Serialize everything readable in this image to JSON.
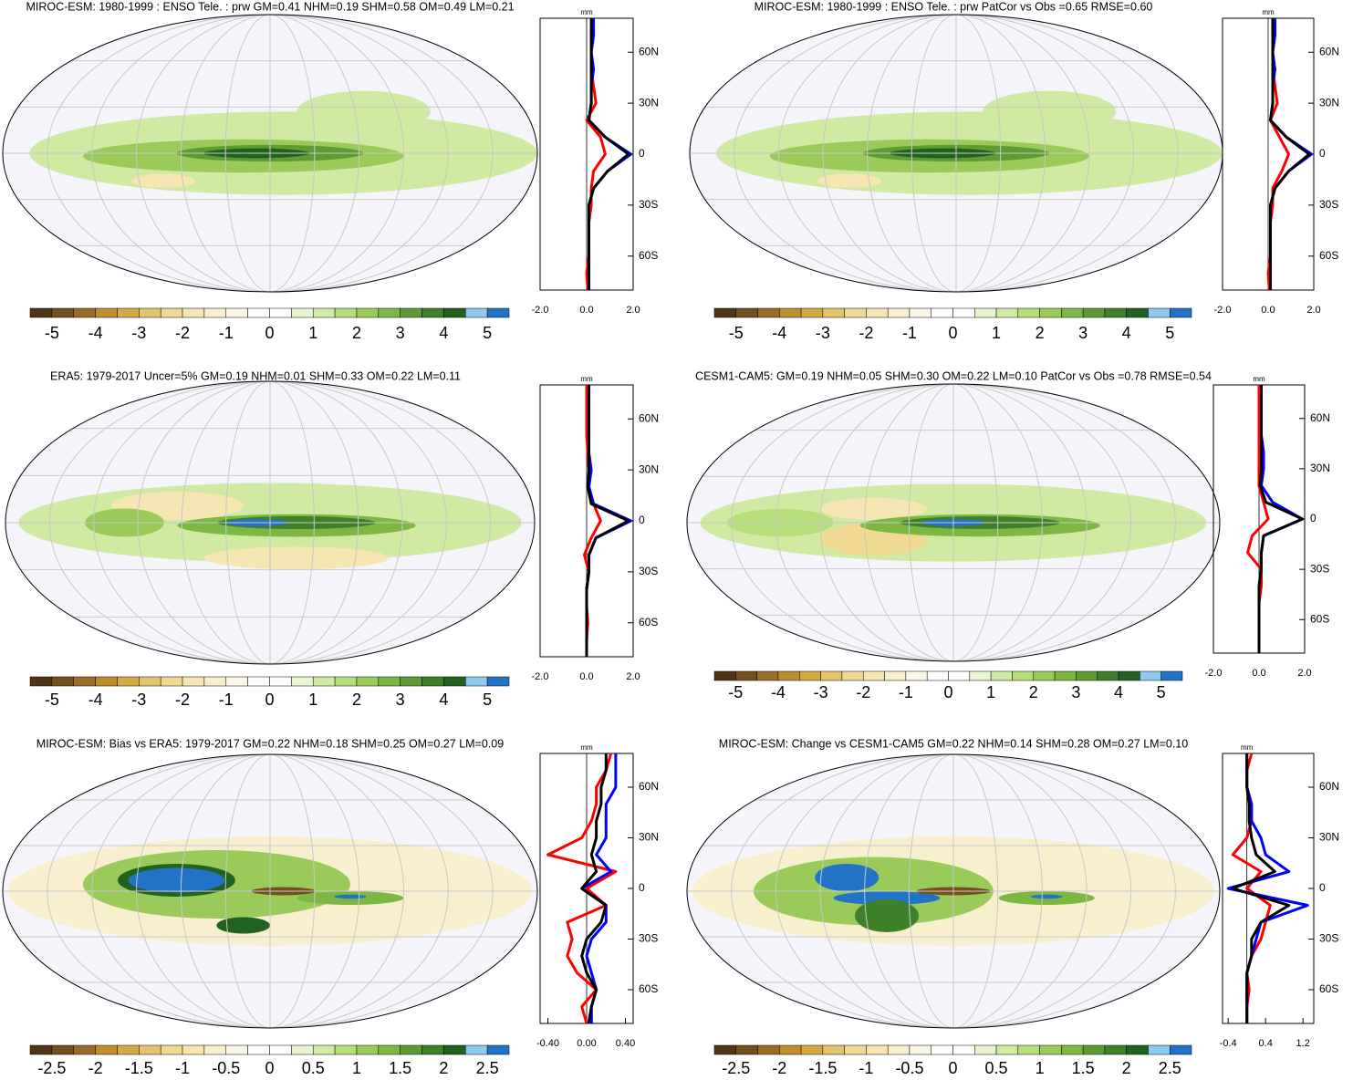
{
  "colorbar_colors": [
    "#4f3416",
    "#74501f",
    "#9a6c27",
    "#bd8d2e",
    "#d5aa42",
    "#e4c46e",
    "#efd993",
    "#f5e6b4",
    "#f8efcf",
    "#fbf8ea",
    "#ffffff",
    "#ffffff",
    "#e9f5d2",
    "#d0eaa3",
    "#b7de7c",
    "#9acb5a",
    "#7db743",
    "#5d9c34",
    "#3e8029",
    "#226221",
    "#8fc9ef",
    "#2273c8"
  ],
  "chart_data": [
    {
      "type": "map",
      "title": "MIROC-ESM: 1980-1999 : ENSO Tele. : prw GM=0.41 NHM=0.19 SHM=0.58 OM=0.49 LM=0.21",
      "colorbar": {
        "lim": [
          -5.5,
          5.5
        ],
        "ticks": [
          -5,
          -4,
          -3,
          -2,
          -1,
          0,
          1,
          2,
          3,
          4,
          5
        ]
      },
      "profile": {
        "type": "line",
        "unit": "mm",
        "xlim": [
          -2,
          2
        ],
        "xticks": [
          {
            "value": -2,
            "label": "-2.0"
          },
          {
            "value": 0,
            "label": "0.0"
          },
          {
            "value": 2,
            "label": "2.0"
          }
        ],
        "ylim": [
          -80,
          80
        ],
        "yticks": [
          {
            "value": -60,
            "label": "60S"
          },
          {
            "value": -30,
            "label": "30S"
          },
          0,
          {
            "value": 30,
            "label": "30N"
          },
          {
            "value": 60,
            "label": "60N"
          }
        ],
        "lat": [
          -80,
          -70,
          -60,
          -50,
          -40,
          -30,
          -20,
          -10,
          0,
          10,
          20,
          30,
          40,
          50,
          60,
          70,
          80
        ],
        "series": [
          {
            "color": "#ff0000",
            "values": [
              0.05,
              0.0,
              0.1,
              0.1,
              0.1,
              0.2,
              0.2,
              0.3,
              0.8,
              0.6,
              0.0,
              0.4,
              0.3,
              0.2,
              0.2,
              0.2,
              0.3
            ]
          },
          {
            "color": "#0000ff",
            "values": [
              0.1,
              0.1,
              0.1,
              0.1,
              0.1,
              0.1,
              0.3,
              0.9,
              1.9,
              0.8,
              0.1,
              0.2,
              0.2,
              0.3,
              0.2,
              0.3,
              0.3
            ]
          },
          {
            "color": "#000000",
            "values": [
              0.1,
              0.1,
              0.1,
              0.1,
              0.1,
              0.1,
              0.3,
              0.9,
              1.8,
              0.8,
              0.1,
              0.2,
              0.2,
              0.2,
              0.2,
              0.2,
              0.2
            ]
          }
        ]
      }
    },
    {
      "type": "map",
      "title": "MIROC-ESM: 1980-1999 : ENSO Tele. : prw PatCor vs Obs =0.65 RMSE=0.60",
      "colorbar": {
        "lim": [
          -5.5,
          5.5
        ],
        "ticks": [
          -5,
          -4,
          -3,
          -2,
          -1,
          0,
          1,
          2,
          3,
          4,
          5
        ]
      },
      "profile": {
        "type": "line",
        "unit": "mm",
        "xlim": [
          -2,
          2
        ],
        "xticks": [
          {
            "value": -2,
            "label": "-2.0"
          },
          {
            "value": 0,
            "label": "0.0"
          },
          {
            "value": 2,
            "label": "2.0"
          }
        ],
        "ylim": [
          -80,
          80
        ],
        "yticks": [
          {
            "value": -60,
            "label": "60S"
          },
          {
            "value": -30,
            "label": "30S"
          },
          0,
          {
            "value": 30,
            "label": "30N"
          },
          {
            "value": 60,
            "label": "60N"
          }
        ],
        "lat": [
          -80,
          -70,
          -60,
          -50,
          -40,
          -30,
          -20,
          -10,
          0,
          10,
          20,
          30,
          40,
          50,
          60,
          70,
          80
        ],
        "series": [
          {
            "color": "#ff0000",
            "values": [
              0.05,
              0.0,
              0.1,
              0.1,
              0.1,
              0.2,
              0.2,
              0.6,
              0.9,
              0.5,
              0.1,
              0.4,
              0.3,
              0.2,
              0.2,
              0.2,
              0.3
            ]
          },
          {
            "color": "#0000ff",
            "values": [
              0.1,
              0.1,
              0.1,
              0.1,
              0.1,
              0.1,
              0.3,
              0.9,
              1.9,
              0.8,
              0.1,
              0.2,
              0.2,
              0.3,
              0.2,
              0.3,
              0.3
            ]
          },
          {
            "color": "#000000",
            "values": [
              0.1,
              0.1,
              0.1,
              0.1,
              0.1,
              0.1,
              0.3,
              0.9,
              1.8,
              0.8,
              0.1,
              0.2,
              0.2,
              0.2,
              0.2,
              0.2,
              0.2
            ]
          }
        ]
      }
    },
    {
      "type": "map",
      "title": "ERA5: 1979-2017 Uncer=5% GM=0.19 NHM=0.01 SHM=0.33 OM=0.22 LM=0.11",
      "colorbar": {
        "lim": [
          -5.5,
          5.5
        ],
        "ticks": [
          -5,
          -4,
          -3,
          -2,
          -1,
          0,
          1,
          2,
          3,
          4,
          5
        ]
      },
      "profile": {
        "type": "line",
        "unit": "mm",
        "xlim": [
          -2,
          2
        ],
        "xticks": [
          {
            "value": -2,
            "label": "-2.0"
          },
          {
            "value": 0,
            "label": "0.0"
          },
          {
            "value": 2,
            "label": "2.0"
          }
        ],
        "ylim": [
          -80,
          80
        ],
        "yticks": [
          {
            "value": -60,
            "label": "60S"
          },
          {
            "value": -30,
            "label": "30S"
          },
          0,
          {
            "value": 30,
            "label": "30N"
          },
          {
            "value": 60,
            "label": "60N"
          }
        ],
        "lat": [
          -80,
          -70,
          -60,
          -50,
          -40,
          -30,
          -20,
          -10,
          0,
          10,
          20,
          30,
          40,
          50,
          60,
          70,
          80
        ],
        "series": [
          {
            "color": "#ff0000",
            "values": [
              0.0,
              0.0,
              0.05,
              0.0,
              0.0,
              0.1,
              -0.1,
              0.2,
              0.6,
              0.3,
              0.1,
              0.1,
              0.05,
              0.0,
              0.0,
              0.0,
              0.0
            ]
          },
          {
            "color": "#0000ff",
            "values": [
              0.0,
              0.0,
              0.0,
              0.0,
              0.0,
              0.1,
              0.1,
              0.4,
              1.9,
              0.3,
              0.1,
              0.2,
              0.1,
              0.1,
              0.1,
              0.1,
              0.1
            ]
          },
          {
            "color": "#000000",
            "values": [
              0.0,
              0.0,
              0.0,
              0.0,
              0.0,
              0.1,
              0.1,
              0.4,
              1.8,
              0.2,
              0.05,
              0.1,
              0.1,
              0.1,
              0.1,
              0.1,
              0.1
            ]
          }
        ]
      }
    },
    {
      "type": "map",
      "title": "CESM1-CAM5: GM=0.19 NHM=0.05 SHM=0.30 OM=0.22 LM=0.10 PatCor vs Obs =0.78 RMSE=0.54",
      "colorbar": {
        "lim": [
          -5.5,
          5.5
        ],
        "ticks": [
          -5,
          -4,
          -3,
          -2,
          -1,
          0,
          1,
          2,
          3,
          4,
          5
        ]
      },
      "profile": {
        "type": "line",
        "unit": "mm",
        "xlim": [
          -2,
          2
        ],
        "xticks": [
          {
            "value": -2,
            "label": "-2.0"
          },
          {
            "value": 0,
            "label": "0.0"
          },
          {
            "value": 2,
            "label": "2.0"
          }
        ],
        "ylim": [
          -80,
          80
        ],
        "yticks": [
          {
            "value": -60,
            "label": "60S"
          },
          {
            "value": -30,
            "label": "30S"
          },
          0,
          {
            "value": 30,
            "label": "30N"
          },
          {
            "value": 60,
            "label": "60N"
          }
        ],
        "lat": [
          -80,
          -70,
          -60,
          -50,
          -40,
          -30,
          -20,
          -10,
          0,
          10,
          20,
          30,
          40,
          50,
          60,
          70,
          80
        ],
        "series": [
          {
            "color": "#ff0000",
            "values": [
              0.0,
              0.0,
              0.0,
              0.0,
              0.1,
              0.1,
              -0.5,
              -0.3,
              0.4,
              0.2,
              0.0,
              0.0,
              0.0,
              0.0,
              0.0,
              0.0,
              0.0
            ]
          },
          {
            "color": "#0000ff",
            "values": [
              0.0,
              0.0,
              0.0,
              0.0,
              0.0,
              0.1,
              0.1,
              0.2,
              1.9,
              0.6,
              0.1,
              0.2,
              0.2,
              0.1,
              0.1,
              0.1,
              0.1
            ]
          },
          {
            "color": "#000000",
            "values": [
              0.0,
              0.0,
              0.0,
              0.0,
              0.0,
              0.1,
              0.1,
              0.2,
              1.9,
              0.3,
              0.05,
              0.1,
              0.1,
              0.1,
              0.1,
              0.1,
              0.1
            ]
          }
        ]
      }
    },
    {
      "type": "map",
      "title": "MIROC-ESM: Bias vs ERA5: 1979-2017 GM=0.22 NHM=0.18 SHM=0.25 OM=0.27 LM=0.09",
      "colorbar": {
        "lim": [
          -2.75,
          2.75
        ],
        "ticks": [
          -2.5,
          -2,
          -1.5,
          -1,
          -0.5,
          0,
          0.5,
          1,
          1.5,
          2,
          2.5
        ]
      },
      "profile": {
        "type": "line",
        "unit": "mm",
        "xlim": [
          -0.48,
          0.48
        ],
        "xticks": [
          {
            "value": -0.4,
            "label": "-0.40"
          },
          {
            "value": 0,
            "label": "0.00"
          },
          {
            "value": 0.4,
            "label": "0.40"
          }
        ],
        "ylim": [
          -80,
          80
        ],
        "yticks": [
          {
            "value": -60,
            "label": "60S"
          },
          {
            "value": -30,
            "label": "30S"
          },
          0,
          {
            "value": 30,
            "label": "30N"
          },
          {
            "value": 60,
            "label": "60N"
          }
        ],
        "lat": [
          -80,
          -70,
          -60,
          -50,
          -40,
          -30,
          -20,
          -10,
          0,
          10,
          20,
          30,
          40,
          50,
          60,
          70,
          80
        ],
        "series": [
          {
            "color": "#ff0000",
            "values": [
              0.0,
              -0.05,
              0.1,
              -0.1,
              -0.2,
              -0.15,
              -0.2,
              0.2,
              0.0,
              0.3,
              -0.4,
              -0.05,
              0.05,
              0.1,
              0.1,
              0.2,
              0.25
            ]
          },
          {
            "color": "#0000ff",
            "values": [
              0.05,
              0.05,
              0.1,
              0.05,
              0.0,
              0.05,
              0.2,
              0.2,
              -0.05,
              0.25,
              0.1,
              0.2,
              0.2,
              0.2,
              0.3,
              0.3,
              0.3
            ]
          },
          {
            "color": "#000000",
            "values": [
              0.02,
              0.05,
              0.1,
              0.0,
              -0.05,
              0.0,
              0.15,
              0.2,
              -0.05,
              0.1,
              0.05,
              0.1,
              0.1,
              0.15,
              0.15,
              0.2,
              0.2
            ]
          }
        ]
      }
    },
    {
      "type": "map",
      "title": "MIROC-ESM: Change vs CESM1-CAM5 GM=0.22 NHM=0.14 SHM=0.28 OM=0.27 LM=0.10",
      "colorbar": {
        "lim": [
          -2.75,
          2.75
        ],
        "ticks": [
          -2.5,
          -2,
          -1.5,
          -1,
          -0.5,
          0,
          0.5,
          1,
          1.5,
          2,
          2.5
        ]
      },
      "profile": {
        "type": "line",
        "unit": "mm",
        "xlim": [
          -0.52,
          1.43
        ],
        "xticks": [
          {
            "value": -0.4,
            "label": "-0.4"
          },
          0.4,
          1.2
        ],
        "ylim": [
          -80,
          80
        ],
        "yticks": [
          {
            "value": -60,
            "label": "60S"
          },
          {
            "value": -30,
            "label": "30S"
          },
          0,
          {
            "value": 30,
            "label": "30N"
          },
          {
            "value": 60,
            "label": "60N"
          }
        ],
        "lat": [
          -80,
          -70,
          -60,
          -50,
          -40,
          -30,
          -20,
          -10,
          0,
          10,
          20,
          30,
          40,
          50,
          60,
          70,
          80
        ],
        "series": [
          {
            "color": "#ff0000",
            "values": [
              0.0,
              0.0,
              0.05,
              0.0,
              0.1,
              0.3,
              0.4,
              0.5,
              0.0,
              0.3,
              -0.3,
              0.0,
              0.1,
              0.1,
              0.0,
              0.0,
              0.1
            ]
          },
          {
            "color": "#0000ff",
            "values": [
              0.0,
              0.0,
              0.0,
              0.0,
              0.1,
              0.2,
              0.3,
              1.3,
              -0.4,
              0.9,
              0.4,
              0.3,
              0.1,
              0.1,
              0.0,
              0.0,
              0.0
            ]
          },
          {
            "color": "#000000",
            "values": [
              0.0,
              0.0,
              0.0,
              0.0,
              0.1,
              0.1,
              0.3,
              0.9,
              -0.3,
              0.6,
              0.2,
              0.1,
              0.05,
              0.05,
              0.0,
              0.0,
              0.0
            ]
          }
        ]
      }
    }
  ]
}
